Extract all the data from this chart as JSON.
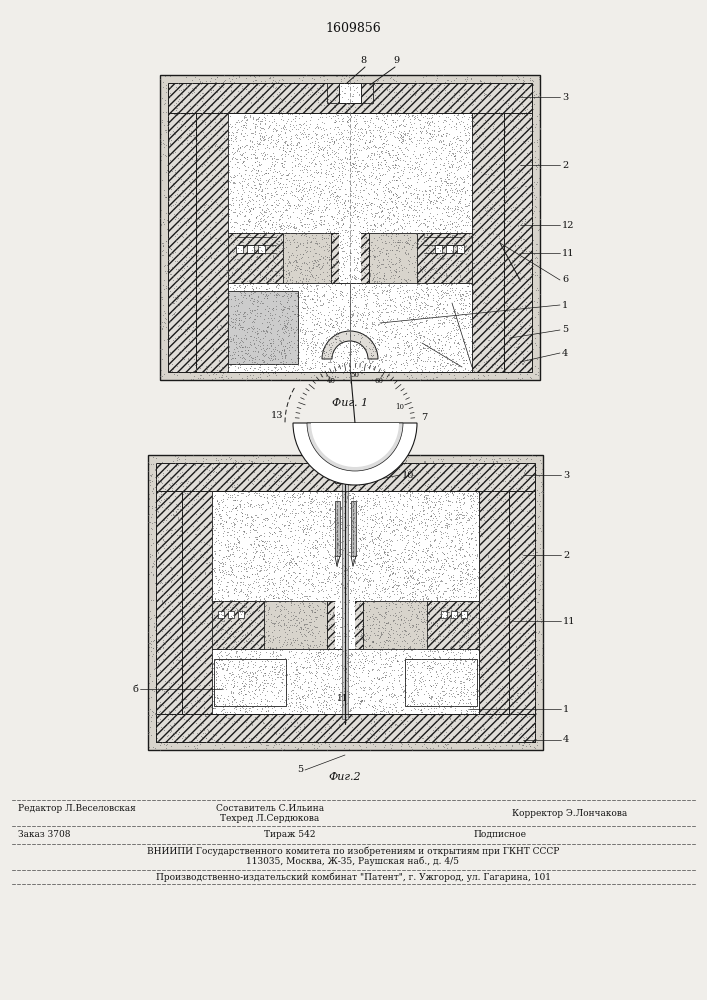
{
  "patent_number": "1609856",
  "fig1_caption": "Фиг. 1",
  "fig2_caption": "Фиг.2",
  "footer_editor": "Редактор Л.Веселовская",
  "footer_comp": "Составитель С.Ильина",
  "footer_tech": "Техред Л.Сердюкова",
  "footer_corr": "Корректор Э.Лончакова",
  "footer_order": "Заказ 3708",
  "footer_tir": "Тираж 542",
  "footer_sub": "Подписное",
  "footer_vniipи": "ВНИИПИ Государственного комитета по изобретениям и открытиям при ГКНТ СССР",
  "footer_addr": "113035, Москва, Ж-35, Раушская наб., д. 4/5",
  "footer_prod": "Производственно-издательский комбинат \"Патент\", г. Ужгород, ул. Гагарина, 101",
  "bg_color": "#f0eeea",
  "lc": "#1a1a1a",
  "hatch_fc": "#e0ddd8",
  "soil_fc": "#d8d4cc",
  "white": "#ffffff"
}
